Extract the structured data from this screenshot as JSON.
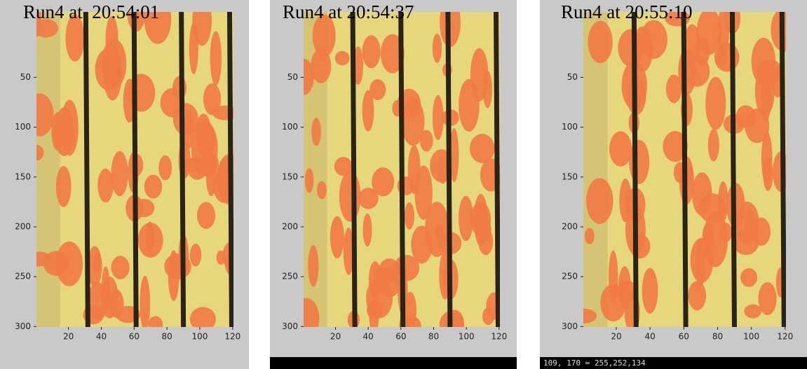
{
  "chart_data": [
    {
      "type": "image",
      "title": "Run4 at  20:54:01",
      "xlim": [
        0.5,
        120.5
      ],
      "ylim": [
        0.5,
        300.5
      ],
      "y_reversed": true,
      "xticks": [
        20,
        40,
        60,
        80,
        100,
        120
      ],
      "yticks": [
        50,
        100,
        150,
        200,
        250,
        300
      ]
    },
    {
      "type": "image",
      "title": "Run4 at 20:54:37",
      "xlim": [
        0.5,
        120.5
      ],
      "ylim": [
        0.5,
        300.5
      ],
      "y_reversed": true,
      "xticks": [
        20,
        40,
        60,
        80,
        100,
        120
      ],
      "yticks": [
        50,
        100,
        150,
        200,
        250,
        300
      ]
    },
    {
      "type": "image",
      "title": "Run4 at 20:55:10",
      "xlim": [
        0.5,
        120.5
      ],
      "ylim": [
        0.5,
        300.5
      ],
      "y_reversed": true,
      "xticks": [
        20,
        40,
        60,
        80,
        100,
        120
      ],
      "yticks": [
        50,
        100,
        150,
        200,
        250,
        300
      ],
      "status": "109, 170 = 255,252,134"
    }
  ]
}
